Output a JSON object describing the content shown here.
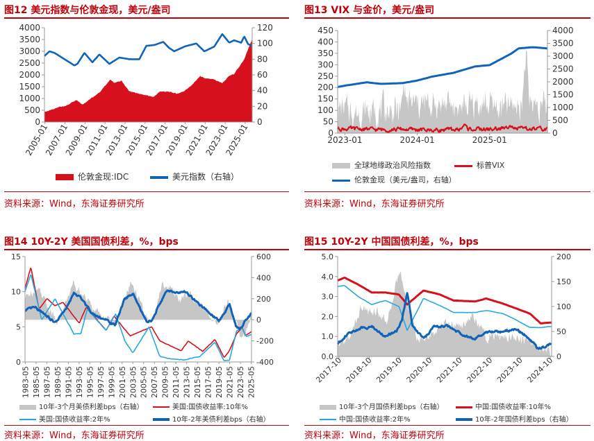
{
  "colors": {
    "red": "#d7101d",
    "blue": "#1262b8",
    "lightblue": "#2aa7e0",
    "grey": "#c6c6c6",
    "brand": "#c0000b"
  },
  "source": "资料来源：Wind，东海证券研究所",
  "chart_data": [
    {
      "type": "area",
      "title": "图12  美元指数与伦敦金现，美元/盎司",
      "xlabels": [
        "2005-01",
        "2007-01",
        "2009-01",
        "2011-01",
        "2013-01",
        "2015-01",
        "2017-01",
        "2019-01",
        "2021-01",
        "2023-01",
        "2025-01"
      ],
      "xlim": [
        2005.0,
        2025.8
      ],
      "ylim": [
        0,
        4000
      ],
      "yticks": [
        "0",
        "500",
        "1000",
        "1500",
        "2000",
        "2500",
        "3000",
        "3500",
        "4000"
      ],
      "y2lim": [
        0,
        120
      ],
      "y2ticks": [
        "0",
        "20",
        "40",
        "60",
        "80",
        "100",
        "120"
      ],
      "series": [
        {
          "name": "伦敦金现:IDC",
          "axis": "left",
          "kind": "area",
          "x": [
            2005.0,
            2006.0,
            2006.4,
            2007.0,
            2008.2,
            2008.8,
            2009.5,
            2010.5,
            2011.6,
            2012.0,
            2012.7,
            2013.5,
            2014.0,
            2015.0,
            2015.9,
            2016.6,
            2017.5,
            2018.3,
            2018.9,
            2019.6,
            2020.6,
            2021.0,
            2022.0,
            2022.8,
            2023.5,
            2024.0,
            2024.5,
            2025.0,
            2025.3,
            2025.6,
            2025.8
          ],
          "y": [
            430,
            550,
            650,
            650,
            950,
            750,
            950,
            1250,
            1800,
            1650,
            1750,
            1300,
            1250,
            1150,
            1060,
            1300,
            1280,
            1200,
            1300,
            1500,
            1950,
            1850,
            1800,
            1650,
            1950,
            2050,
            2350,
            2650,
            3000,
            3300,
            3500
          ]
        },
        {
          "name": "美元指数（右轴）",
          "axis": "right",
          "kind": "line",
          "x": [
            2005.0,
            2005.5,
            2006.0,
            2007.0,
            2008.0,
            2008.3,
            2009.0,
            2009.8,
            2010.5,
            2011.5,
            2012.5,
            2013.5,
            2014.5,
            2015.2,
            2016.0,
            2016.9,
            2017.5,
            2018.0,
            2019.0,
            2020.2,
            2021.0,
            2022.0,
            2022.8,
            2023.5,
            2024.0,
            2024.7,
            2025.0,
            2025.4,
            2025.8
          ],
          "y": [
            84,
            90,
            88,
            80,
            72,
            74,
            88,
            76,
            86,
            74,
            82,
            80,
            80,
            97,
            98,
            102,
            94,
            90,
            96,
            100,
            90,
            96,
            112,
            101,
            104,
            101,
            109,
            99,
            97
          ]
        }
      ]
    },
    {
      "type": "area",
      "title": "图13  VIX 与金价，美元/盎司",
      "xlabels": [
        "2023-01",
        "2024-01",
        "2025-01"
      ],
      "xlim": [
        2022.9,
        2025.8
      ],
      "ylim": [
        0,
        450
      ],
      "yticks": [
        "0",
        "50",
        "100",
        "150",
        "200",
        "250",
        "300",
        "350",
        "400",
        "450"
      ],
      "y2lim": [
        0,
        4000
      ],
      "y2ticks": [
        "0",
        "500",
        "1000",
        "1500",
        "2000",
        "2500",
        "3000",
        "3500",
        "4000"
      ],
      "series": [
        {
          "name": "全球地缘政治风险指数",
          "axis": "left",
          "kind": "area",
          "x": [
            2022.9,
            2023.2,
            2023.5,
            2023.78,
            2023.82,
            2023.86,
            2024.1,
            2024.4,
            2024.6,
            2024.9,
            2025.2,
            2025.45,
            2025.5,
            2025.55,
            2025.8
          ],
          "y": [
            110,
            90,
            100,
            95,
            230,
            130,
            120,
            130,
            110,
            130,
            110,
            130,
            360,
            140,
            110
          ]
        },
        {
          "name": "标普VIX",
          "axis": "left",
          "kind": "line",
          "x": [
            2022.9,
            2023.2,
            2023.5,
            2023.8,
            2024.2,
            2024.6,
            2024.65,
            2024.7,
            2025.0,
            2025.25,
            2025.28,
            2025.35,
            2025.8
          ],
          "y": [
            20,
            18,
            15,
            17,
            13,
            16,
            38,
            18,
            16,
            22,
            45,
            20,
            17
          ]
        },
        {
          "name": "伦敦金现（美元/盎司，右轴）",
          "axis": "right",
          "kind": "line",
          "x": [
            2022.9,
            2023.0,
            2023.3,
            2023.5,
            2023.8,
            2024.0,
            2024.2,
            2024.5,
            2024.8,
            2025.0,
            2025.3,
            2025.4,
            2025.6,
            2025.8
          ],
          "y": [
            1800,
            1850,
            1980,
            1920,
            1950,
            2050,
            2200,
            2350,
            2600,
            2650,
            3100,
            3300,
            3350,
            3300
          ]
        }
      ]
    },
    {
      "type": "area",
      "title": "图14  10Y-2Y 美国国债利差，%，bps",
      "xlabels": [
        "1983-05",
        "1985-05",
        "1987-05",
        "1989-05",
        "1991-05",
        "1993-05",
        "1995-05",
        "1997-05",
        "1999-05",
        "2001-05",
        "2003-05",
        "2005-05",
        "2007-05",
        "2009-05",
        "2011-05",
        "2013-05",
        "2015-05",
        "2017-05",
        "2019-05",
        "2021-05",
        "2023-05",
        "2025-05"
      ],
      "xlim": [
        1983.4,
        2025.6
      ],
      "ylim": [
        0,
        15
      ],
      "yticks": [
        "0",
        "5",
        "10",
        "15"
      ],
      "y2lim": [
        -400,
        600
      ],
      "y2ticks": [
        "-400",
        "-200",
        "0",
        "200",
        "400",
        "600"
      ],
      "series": [
        {
          "name": "10年-3个月美债利差bps（右轴）",
          "axis": "right",
          "kind": "area",
          "x": [
            1983.4,
            1984.5,
            1986.0,
            1988.0,
            1989.5,
            1990.5,
            1992.5,
            1994.0,
            1996.0,
            1998.0,
            2000.2,
            2001.5,
            2003.0,
            2005.0,
            2006.5,
            2007.8,
            2009.0,
            2010.5,
            2012.5,
            2014.0,
            2016.0,
            2018.0,
            2019.6,
            2020.5,
            2021.5,
            2022.8,
            2023.5,
            2024.5,
            2025.6
          ],
          "y": [
            200,
            260,
            300,
            100,
            -10,
            100,
            360,
            250,
            120,
            40,
            -60,
            100,
            350,
            150,
            -50,
            100,
            340,
            300,
            180,
            250,
            150,
            40,
            -40,
            100,
            180,
            -40,
            -180,
            -120,
            40
          ]
        },
        {
          "name": "美国:国债收益率:10年%",
          "axis": "left",
          "kind": "line",
          "x": [
            1983.4,
            1984.5,
            1986.0,
            1987.5,
            1989.0,
            1990.5,
            1993.5,
            1994.8,
            1998.5,
            2000.0,
            2003.0,
            2007.0,
            2008.5,
            2012.5,
            2013.8,
            2016.5,
            2018.8,
            2020.5,
            2021.5,
            2022.8,
            2023.8,
            2024.5,
            2025.6
          ],
          "y": [
            10.5,
            13.5,
            7.5,
            9,
            8,
            8.5,
            5.5,
            7.8,
            4.5,
            6.5,
            3.7,
            5,
            3,
            1.6,
            3,
            1.5,
            3.2,
            0.6,
            1.6,
            4,
            4.9,
            3.8,
            4.3
          ]
        },
        {
          "name": "美国:国债收益率:2年%",
          "axis": "left",
          "kind": "line",
          "x": [
            1983.4,
            1984.5,
            1986.5,
            1989.0,
            1992.5,
            1993.8,
            1995.0,
            1998.5,
            2000.3,
            2002.0,
            2003.5,
            2006.5,
            2008.5,
            2010.0,
            2013.0,
            2016.0,
            2018.8,
            2020.5,
            2021.5,
            2022.8,
            2023.8,
            2024.6,
            2025.6
          ],
          "y": [
            10,
            12.5,
            6,
            9,
            4,
            4,
            7.5,
            4.5,
            6.8,
            3,
            1.3,
            5,
            0.8,
            0.5,
            0.3,
            0.8,
            2.8,
            0.15,
            0.2,
            4.4,
            5,
            3.6,
            3.9
          ]
        },
        {
          "name": "10年-2年美债利差bps（右轴）",
          "axis": "right",
          "kind": "line",
          "x": [
            1983.4,
            1985.0,
            1987.0,
            1989.0,
            1991.0,
            1992.5,
            1994.0,
            1996.0,
            1998.0,
            2000.2,
            2002.0,
            2003.5,
            2006.0,
            2007.0,
            2008.5,
            2010.0,
            2011.5,
            2013.5,
            2015.5,
            2017.0,
            2018.8,
            2019.5,
            2020.5,
            2021.5,
            2022.7,
            2023.5,
            2024.5,
            2025.6
          ],
          "y": [
            80,
            120,
            60,
            -30,
            100,
            250,
            200,
            60,
            10,
            -50,
            200,
            250,
            -20,
            -10,
            160,
            280,
            260,
            260,
            160,
            100,
            20,
            -10,
            60,
            150,
            -60,
            -90,
            0,
            60
          ]
        }
      ]
    },
    {
      "type": "area",
      "title": "图15  10Y-2Y 中国国债利差，%，bps",
      "xlabels": [
        "2017-10",
        "2018-10",
        "2019-10",
        "2020-10",
        "2021-10",
        "2022-10",
        "2023-10",
        "2024-10"
      ],
      "xlim": [
        2017.75,
        2025.6
      ],
      "ylim": [
        0,
        5
      ],
      "yticks": [
        "0.0",
        "1.0",
        "2.0",
        "3.0",
        "4.0",
        "5.0"
      ],
      "y2lim": [
        0,
        200
      ],
      "y2ticks": [
        "0",
        "50",
        "100",
        "150",
        "200"
      ],
      "series": [
        {
          "name": "10年-3个月国债利差bps（右轴）",
          "axis": "right",
          "kind": "area",
          "x": [
            2017.75,
            2018.2,
            2018.6,
            2019.2,
            2019.6,
            2019.9,
            2020.05,
            2020.3,
            2020.7,
            2021.2,
            2021.7,
            2022.2,
            2022.7,
            2023.2,
            2023.7,
            2024.2,
            2024.7,
            2025.1,
            2025.6
          ],
          "y": [
            20,
            40,
            95,
            90,
            70,
            150,
            170,
            110,
            30,
            40,
            70,
            60,
            80,
            40,
            40,
            40,
            30,
            20,
            10
          ]
        },
        {
          "name": "中国:国债收益率:10年%",
          "axis": "left",
          "kind": "line",
          "x": [
            2017.75,
            2018.0,
            2018.5,
            2019.0,
            2019.5,
            2020.0,
            2020.3,
            2020.9,
            2021.5,
            2022.0,
            2022.8,
            2023.2,
            2023.8,
            2024.2,
            2024.8,
            2025.2,
            2025.6
          ],
          "y": [
            3.8,
            3.95,
            3.6,
            3.2,
            3.2,
            3.1,
            2.6,
            3.3,
            3.1,
            2.8,
            2.75,
            2.9,
            2.65,
            2.45,
            2.15,
            1.65,
            1.7
          ]
        },
        {
          "name": "中国:国债收益率:2年%",
          "axis": "left",
          "kind": "line",
          "x": [
            2017.75,
            2018.0,
            2018.5,
            2019.0,
            2019.5,
            2020.0,
            2020.3,
            2020.9,
            2021.5,
            2022.0,
            2022.8,
            2023.2,
            2023.8,
            2024.2,
            2024.8,
            2025.2,
            2025.6
          ],
          "y": [
            3.5,
            3.55,
            3.0,
            2.6,
            2.8,
            2.5,
            1.3,
            2.9,
            2.55,
            2.2,
            2.2,
            2.3,
            2.15,
            1.9,
            1.45,
            1.45,
            1.5
          ]
        },
        {
          "name": "10年-2年国债利差bps（右轴）",
          "axis": "right",
          "kind": "line",
          "x": [
            2017.75,
            2018.0,
            2018.5,
            2019.0,
            2019.5,
            2019.9,
            2020.1,
            2020.3,
            2020.5,
            2020.9,
            2021.3,
            2021.8,
            2022.3,
            2022.8,
            2023.3,
            2023.8,
            2024.3,
            2024.8,
            2025.1,
            2025.6
          ],
          "y": [
            25,
            40,
            55,
            60,
            40,
            50,
            70,
            130,
            60,
            35,
            60,
            60,
            45,
            35,
            50,
            50,
            55,
            35,
            15,
            25
          ]
        }
      ]
    }
  ]
}
